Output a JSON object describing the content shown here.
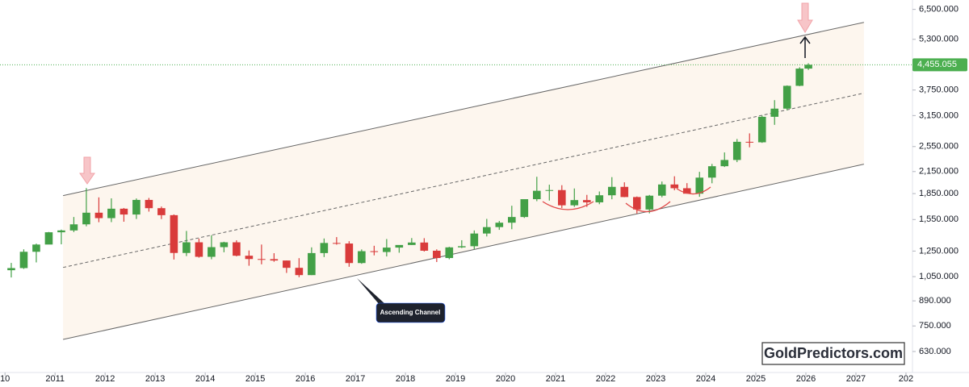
{
  "chart_data": {
    "type": "candlestick",
    "log_scale": true,
    "up_color": "#43a047",
    "down_color": "#d93b3b",
    "xlim": [
      2009.9,
      2028.13
    ],
    "xticks": [
      {
        "value": 2010,
        "label": "10"
      },
      2011,
      2012,
      2013,
      2014,
      2015,
      2016,
      2017,
      2018,
      2019,
      2020,
      2021,
      2022,
      2023,
      2024,
      2025,
      2026,
      2027,
      {
        "value": 2028,
        "label": "202"
      }
    ],
    "ylim": [
      546,
      6930
    ],
    "yticks": [
      {
        "value": 6500,
        "label": "6,500.000"
      },
      {
        "value": 5300,
        "label": "5,300.000"
      },
      {
        "value": 3750,
        "label": "3,750.000"
      },
      {
        "value": 3150,
        "label": "3,150.000"
      },
      {
        "value": 2550,
        "label": "2,550.000"
      },
      {
        "value": 2150,
        "label": "2,150.000"
      },
      {
        "value": 1850,
        "label": "1,850.000"
      },
      {
        "value": 1550,
        "label": "1,550.000"
      },
      {
        "value": 1250,
        "label": "1,250.000"
      },
      {
        "value": 1050,
        "label": "1,050.000"
      },
      {
        "value": 890,
        "label": "890.000"
      },
      {
        "value": 750,
        "label": "750.000"
      },
      {
        "value": 630,
        "label": "630.000"
      }
    ],
    "last_price": {
      "value": 4455.055,
      "label": "4,455.055",
      "color": "#4caf50"
    },
    "x": [
      2010.125,
      2010.375,
      2010.625,
      2010.875,
      2011.125,
      2011.375,
      2011.625,
      2011.875,
      2012.125,
      2012.375,
      2012.625,
      2012.875,
      2013.125,
      2013.375,
      2013.625,
      2013.875,
      2014.125,
      2014.375,
      2014.625,
      2014.875,
      2015.125,
      2015.375,
      2015.625,
      2015.875,
      2016.125,
      2016.375,
      2016.625,
      2016.875,
      2017.125,
      2017.375,
      2017.625,
      2017.875,
      2018.125,
      2018.375,
      2018.625,
      2018.875,
      2019.125,
      2019.375,
      2019.625,
      2019.875,
      2020.125,
      2020.375,
      2020.625,
      2020.875,
      2021.125,
      2021.375,
      2021.625,
      2021.875,
      2022.125,
      2022.375,
      2022.625,
      2022.875,
      2023.125,
      2023.375,
      2023.625,
      2023.875,
      2024.125,
      2024.375,
      2024.625,
      2024.875,
      2025.125,
      2025.375,
      2025.625,
      2025.875,
      2026.05
    ],
    "open": [
      1097,
      1113,
      1244,
      1307,
      1421,
      1439,
      1500,
      1624,
      1565,
      1669,
      1604,
      1772,
      1675,
      1597,
      1234,
      1327,
      1202,
      1284,
      1327,
      1211,
      1184,
      1183,
      1172,
      1115,
      1061,
      1233,
      1321,
      1316,
      1152,
      1249,
      1242,
      1280,
      1303,
      1325,
      1253,
      1192,
      1282,
      1292,
      1409,
      1472,
      1517,
      1577,
      1781,
      1886,
      1895,
      1708,
      1770,
      1743,
      1829,
      1937,
      1807,
      1660,
      1824,
      1969,
      1919,
      1849,
      2063,
      2230,
      2327,
      2634,
      2625,
      3124,
      3303,
      3859,
      4340
    ],
    "high": [
      1153,
      1265,
      1315,
      1424,
      1447,
      1577,
      1921,
      1803,
      1791,
      1677,
      1790,
      1796,
      1694,
      1605,
      1434,
      1361,
      1392,
      1332,
      1345,
      1255,
      1307,
      1232,
      1172,
      1191,
      1282,
      1362,
      1375,
      1337,
      1264,
      1296,
      1357,
      1300,
      1366,
      1365,
      1265,
      1287,
      1346,
      1439,
      1557,
      1535,
      1703,
      1765,
      2075,
      1966,
      1959,
      1916,
      1834,
      1877,
      2070,
      1998,
      1814,
      1833,
      2009,
      2082,
      1987,
      2146,
      2265,
      2450,
      2685,
      2790,
      3148,
      3500,
      3870,
      4380,
      4500
    ],
    "low": [
      1044,
      1107,
      1157,
      1310,
      1309,
      1423,
      1480,
      1522,
      1523,
      1527,
      1556,
      1636,
      1555,
      1180,
      1208,
      1195,
      1182,
      1240,
      1206,
      1131,
      1142,
      1162,
      1077,
      1046,
      1061,
      1200,
      1306,
      1123,
      1146,
      1214,
      1205,
      1236,
      1303,
      1246,
      1160,
      1182,
      1276,
      1266,
      1381,
      1445,
      1451,
      1567,
      1757,
      1764,
      1677,
      1690,
      1690,
      1721,
      1780,
      1805,
      1615,
      1617,
      1804,
      1893,
      1848,
      1810,
      1985,
      2218,
      2293,
      2537,
      2615,
      2957,
      3268,
      3850,
      4300
    ],
    "close": [
      1113,
      1244,
      1307,
      1421,
      1439,
      1500,
      1624,
      1565,
      1669,
      1604,
      1772,
      1675,
      1597,
      1234,
      1327,
      1202,
      1284,
      1327,
      1211,
      1184,
      1183,
      1172,
      1115,
      1061,
      1233,
      1321,
      1316,
      1152,
      1249,
      1242,
      1280,
      1303,
      1325,
      1253,
      1192,
      1282,
      1292,
      1409,
      1472,
      1517,
      1577,
      1781,
      1886,
      1895,
      1708,
      1770,
      1743,
      1829,
      1937,
      1807,
      1660,
      1824,
      1969,
      1919,
      1849,
      2063,
      2230,
      2327,
      2634,
      2625,
      3124,
      3303,
      3859,
      4340,
      4455.055
    ],
    "channel": {
      "upper": {
        "x": [
          2011.16,
          2027.16
        ],
        "y": [
          1825,
          5950
        ]
      },
      "middle": {
        "x": [
          2011.16,
          2027.16
        ],
        "y": [
          1118,
          3672
        ]
      },
      "lower": {
        "x": [
          2011.16,
          2027.16
        ],
        "y": [
          684,
          2261
        ]
      }
    },
    "annotations": [
      "Ascending Channel",
      "GoldPredictors.com"
    ]
  }
}
